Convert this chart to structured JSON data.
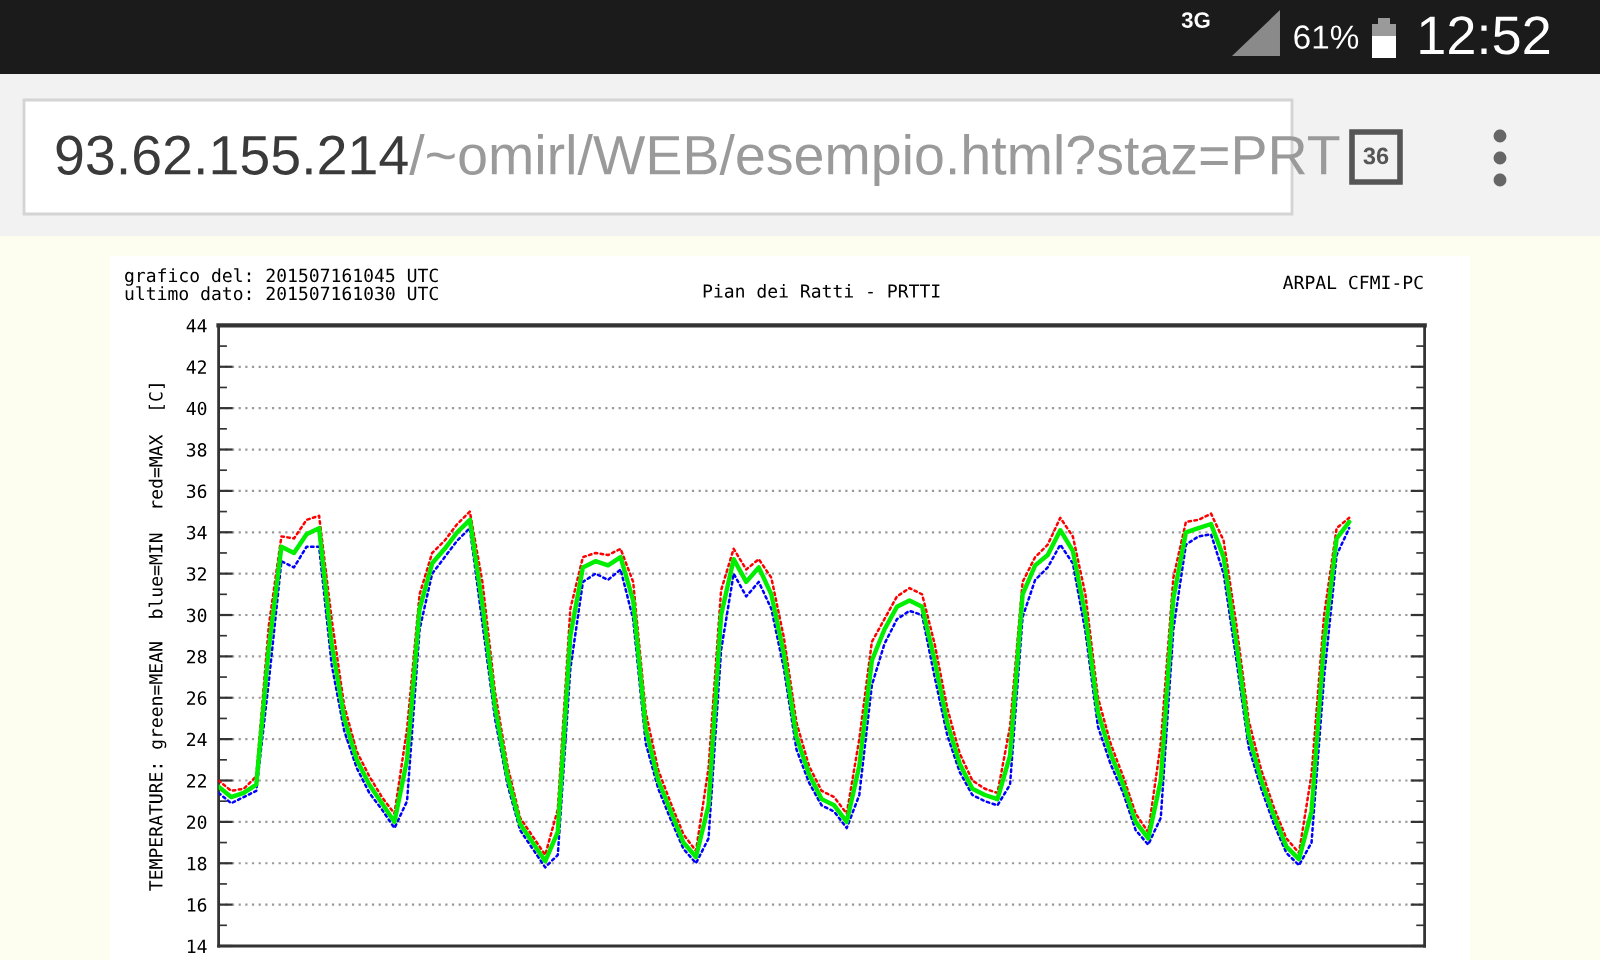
{
  "chart_data": {
    "type": "line",
    "title": "Pian dei Ratti - PRTTI",
    "ylabel": "TEMPERATURE: green=MEAN  blue=MIN  red=MAX  [C]",
    "annotations": [
      "grafico del: 201507161045 UTC",
      "ultimo dato: 201507161030 UTC",
      "ARPAL CFMI-PC",
      "93.62.155.214",
      "/~omirl/WEB/esempio.html?staz=PRT",
      "36",
      "3G",
      "61%",
      "12:52"
    ],
    "categories": [
      null,
      null,
      null,
      null,
      null,
      null,
      null,
      null,
      null,
      null,
      null,
      null,
      null,
      null,
      null,
      null,
      null,
      null,
      null,
      null,
      null,
      null,
      null,
      null,
      null,
      null,
      null,
      null,
      null,
      null,
      null,
      null,
      null,
      null,
      null,
      null,
      null,
      null,
      null,
      null,
      null,
      null,
      null,
      null,
      null,
      null,
      null,
      null,
      null,
      null,
      null,
      null,
      null,
      null,
      null,
      null,
      null,
      null,
      null,
      null,
      null,
      null,
      null,
      null,
      null,
      null,
      null,
      null,
      null,
      null,
      null,
      null,
      null,
      null,
      null,
      null,
      null,
      null,
      null,
      null,
      null,
      null,
      null,
      null,
      null,
      null,
      null,
      null,
      null,
      null,
      null,
      null,
      null,
      null,
      null,
      null,
      null
    ],
    "series": [
      {
        "color": "#0000ff",
        "line_style": "dotted",
        "values": [
          21.4,
          20.9,
          21.2,
          21.5,
          26.8,
          32.6,
          32.3,
          33.3,
          33.3,
          27.6,
          24.4,
          22.6,
          21.4,
          20.6,
          19.7,
          21.0,
          29.3,
          32.0,
          32.8,
          33.6,
          34.2,
          29.6,
          25.0,
          21.8,
          19.6,
          18.7,
          17.8,
          18.4,
          27.4,
          31.6,
          32.0,
          31.7,
          32.2,
          29.8,
          23.8,
          21.6,
          20.1,
          18.7,
          18.0,
          19.2,
          28.3,
          32.0,
          30.9,
          31.6,
          30.3,
          27.4,
          23.5,
          21.9,
          20.8,
          20.5,
          19.7,
          21.3,
          26.6,
          28.6,
          29.8,
          30.2,
          30.0,
          27.0,
          24.2,
          22.4,
          21.3,
          21.0,
          20.8,
          21.8,
          29.9,
          31.7,
          32.3,
          33.4,
          32.5,
          29.2,
          24.6,
          22.8,
          21.4,
          19.6,
          18.9,
          20.2,
          29.3,
          33.4,
          33.8,
          33.9,
          32.0,
          27.9,
          23.6,
          21.6,
          19.9,
          18.5,
          17.9,
          19.0,
          27.0,
          32.9,
          34.2,
          null,
          null,
          null,
          null,
          null,
          null
        ]
      },
      {
        "color": "#ff0000",
        "line_style": "dotted",
        "values": [
          22.0,
          21.5,
          21.6,
          22.2,
          29.5,
          33.8,
          33.7,
          34.6,
          34.8,
          29.8,
          25.6,
          23.4,
          22.2,
          21.2,
          20.4,
          24.5,
          31.0,
          33.0,
          33.6,
          34.4,
          35.0,
          31.6,
          26.3,
          22.7,
          20.2,
          19.3,
          18.4,
          20.6,
          30.3,
          32.8,
          33.0,
          32.9,
          33.2,
          31.6,
          25.3,
          22.5,
          20.9,
          19.4,
          18.6,
          22.6,
          31.2,
          33.2,
          32.2,
          32.7,
          31.8,
          28.9,
          24.8,
          22.7,
          21.5,
          21.2,
          20.4,
          24.0,
          28.7,
          29.8,
          30.9,
          31.3,
          31.0,
          28.6,
          25.5,
          23.3,
          22.0,
          21.6,
          21.4,
          24.6,
          31.6,
          32.8,
          33.4,
          34.7,
          33.8,
          31.0,
          26.0,
          23.8,
          22.2,
          20.4,
          19.5,
          23.8,
          31.8,
          34.5,
          34.6,
          34.9,
          33.6,
          29.6,
          24.9,
          22.5,
          20.7,
          19.2,
          18.5,
          22.3,
          30.0,
          34.2,
          34.7,
          null,
          null,
          null,
          null,
          null,
          null
        ]
      },
      {
        "color": "#00ee00",
        "line_style": "solid",
        "values": [
          21.7,
          21.2,
          21.4,
          21.8,
          28.4,
          33.3,
          33.0,
          33.9,
          34.2,
          28.6,
          25.0,
          23.0,
          21.8,
          20.9,
          20.0,
          23.0,
          30.3,
          32.5,
          33.2,
          34.0,
          34.6,
          30.5,
          25.6,
          22.2,
          19.9,
          19.0,
          18.1,
          19.5,
          29.0,
          32.3,
          32.6,
          32.4,
          32.8,
          30.7,
          24.5,
          22.0,
          20.5,
          19.0,
          18.3,
          20.8,
          30.0,
          32.7,
          31.6,
          32.3,
          31.0,
          28.1,
          24.1,
          22.3,
          21.1,
          20.8,
          20.0,
          22.7,
          27.8,
          29.3,
          30.4,
          30.7,
          30.4,
          27.8,
          24.8,
          22.8,
          21.6,
          21.3,
          21.1,
          23.2,
          31.0,
          32.4,
          32.9,
          34.1,
          33.1,
          30.0,
          25.3,
          23.3,
          21.8,
          20.0,
          19.2,
          22.0,
          30.8,
          34.0,
          34.2,
          34.4,
          32.8,
          28.7,
          24.2,
          22.0,
          20.3,
          18.8,
          18.2,
          20.5,
          28.7,
          33.7,
          34.5,
          null,
          null,
          null,
          null,
          null,
          null
        ]
      }
    ],
    "ylim": [
      14,
      44
    ],
    "yticks": [
      14,
      16,
      18,
      20,
      22,
      24,
      26,
      28,
      30,
      32,
      34,
      36,
      38,
      40,
      42,
      44
    ],
    "grid": "y",
    "tick_labels": "y"
  }
}
